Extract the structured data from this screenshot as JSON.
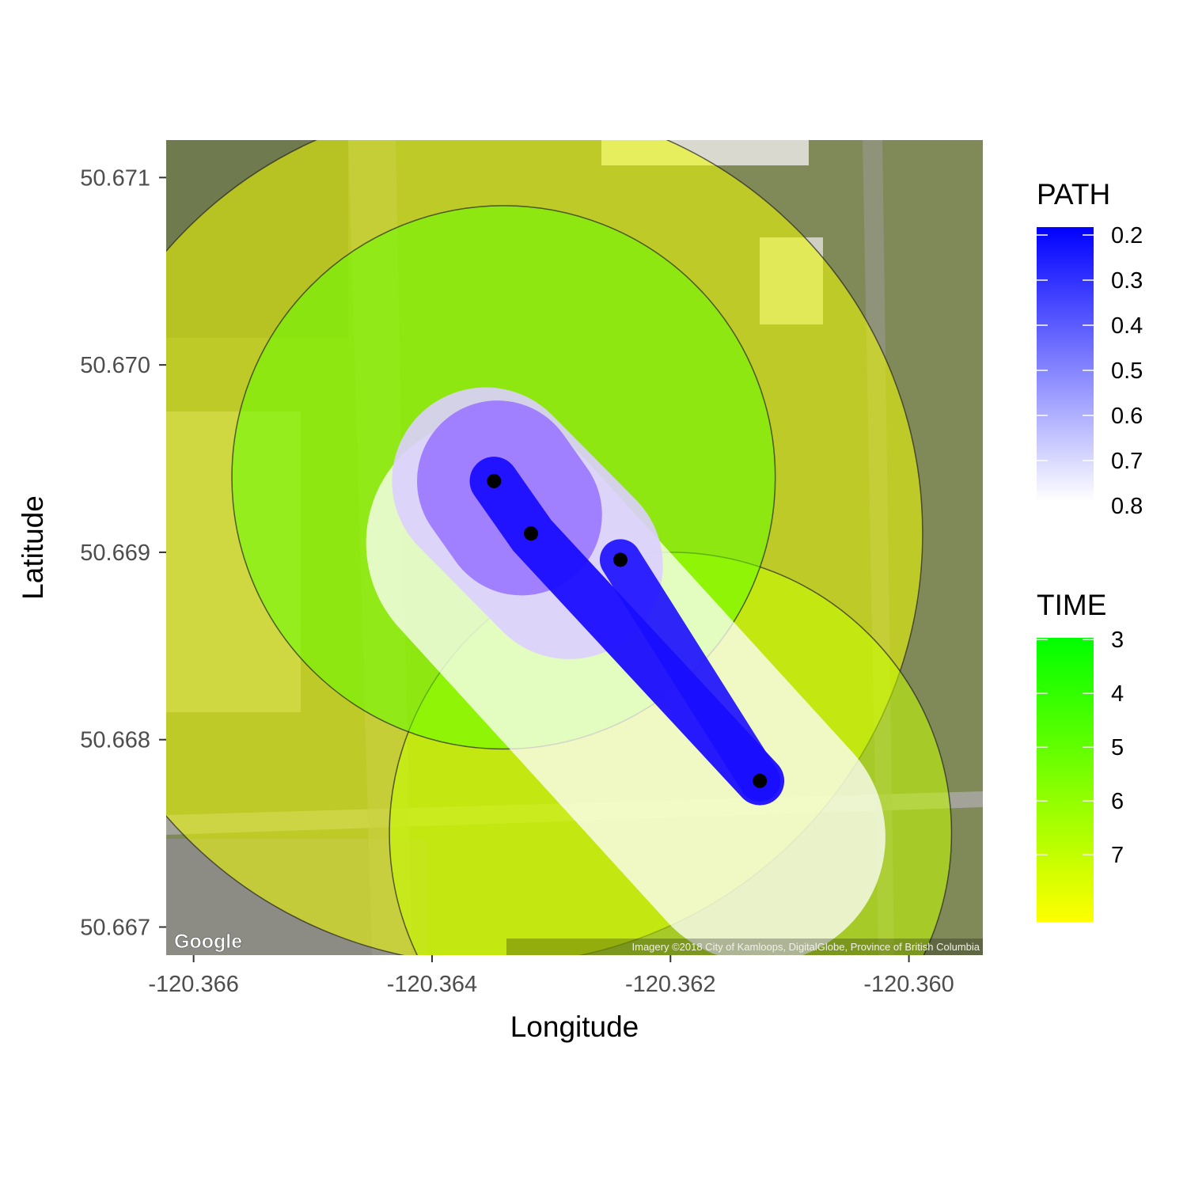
{
  "map": {
    "xlabel": "Longitude",
    "ylabel": "Latitude",
    "x_ticks": [
      {
        "value": -120.366,
        "label": "-120.366"
      },
      {
        "value": -120.364,
        "label": "-120.364"
      },
      {
        "value": -120.362,
        "label": "-120.362"
      },
      {
        "value": -120.36,
        "label": "-120.360"
      }
    ],
    "y_ticks": [
      {
        "value": 50.667,
        "label": "50.667"
      },
      {
        "value": 50.668,
        "label": "50.668"
      },
      {
        "value": 50.669,
        "label": "50.669"
      },
      {
        "value": 50.67,
        "label": "50.670"
      },
      {
        "value": 50.671,
        "label": "50.671"
      }
    ],
    "xlim": [
      -120.36623,
      -120.35938
    ],
    "ylim": [
      50.66685,
      50.6712
    ],
    "basemap": "satellite",
    "google_logo": "Google",
    "attribution": "Imagery ©2018 City of Kamloops, DigitalGlobe, Province of British Columbia"
  },
  "time_layers": [
    {
      "time": 7,
      "color": "#f2ff00",
      "circles": [
        {
          "lon": -120.3635,
          "lat": 50.6691,
          "radius_deg_lat": 0.0023
        }
      ]
    },
    {
      "time": 6,
      "color": "#c6ff00",
      "circles": [
        {
          "lon": -120.362,
          "lat": 50.6675,
          "radius_deg_lat": 0.0015
        }
      ]
    },
    {
      "time": 4,
      "color": "#66ff00",
      "circles": [
        {
          "lon": -120.3634,
          "lat": 50.6694,
          "radius_deg_lat": 0.00145
        }
      ]
    }
  ],
  "path_layers": [
    {
      "path": 0.8,
      "color": "#ffffff",
      "opacity": 0.75,
      "width_deg_lat": 0.00067,
      "points": [
        {
          "lon": -120.3635,
          "lat": 50.66905
        },
        {
          "lon": -120.36125,
          "lat": 50.66748
        }
      ]
    },
    {
      "path": 0.6,
      "color": "#dccfff",
      "opacity": 0.9,
      "width_deg_lat": 0.0005,
      "points": [
        {
          "lon": -120.36355,
          "lat": 50.66938
        },
        {
          "lon": -120.36285,
          "lat": 50.66893
        }
      ]
    },
    {
      "path": 0.4,
      "color": "#9d7bff",
      "opacity": 0.95,
      "width_deg_lat": 0.00043,
      "points": [
        {
          "lon": -120.36345,
          "lat": 50.66938
        },
        {
          "lon": -120.36325,
          "lat": 50.6692
        }
      ]
    },
    {
      "path": 0.2,
      "color": "#1a0dff",
      "opacity": 0.95,
      "width_deg_lat": 0.00013,
      "points": [
        {
          "lon": -120.36348,
          "lat": 50.66938
        },
        {
          "lon": -120.36316,
          "lat": 50.66909
        },
        {
          "lon": -120.36125,
          "lat": 50.66778
        }
      ]
    },
    {
      "path": 0.2,
      "color": "#1a0dff",
      "opacity": 0.9,
      "width_deg_lat": 0.00011,
      "points": [
        {
          "lon": -120.36242,
          "lat": 50.66896
        },
        {
          "lon": -120.36125,
          "lat": 50.66778
        }
      ]
    }
  ],
  "points": [
    {
      "lon": -120.36348,
      "lat": 50.66938
    },
    {
      "lon": -120.36317,
      "lat": 50.6691
    },
    {
      "lon": -120.36242,
      "lat": 50.66896
    },
    {
      "lon": -120.36125,
      "lat": 50.66778
    }
  ],
  "legends": {
    "path": {
      "title": "PATH",
      "colors": [
        "#0000ff",
        "#ffffff"
      ],
      "labels": [
        {
          "value": 0.2,
          "label": "0.2"
        },
        {
          "value": 0.3,
          "label": "0.3"
        },
        {
          "value": 0.4,
          "label": "0.4"
        },
        {
          "value": 0.5,
          "label": "0.5"
        },
        {
          "value": 0.6,
          "label": "0.6"
        },
        {
          "value": 0.7,
          "label": "0.7"
        },
        {
          "value": 0.8,
          "label": "0.8"
        }
      ],
      "range": [
        0.2,
        0.8
      ]
    },
    "time": {
      "title": "TIME",
      "colors": [
        "#00ff00",
        "#ffff00"
      ],
      "labels": [
        {
          "value": 3,
          "label": "3"
        },
        {
          "value": 4,
          "label": "4"
        },
        {
          "value": 5,
          "label": "5"
        },
        {
          "value": 6,
          "label": "6"
        },
        {
          "value": 7,
          "label": "7"
        }
      ],
      "range": [
        2.97,
        8.25
      ]
    }
  }
}
